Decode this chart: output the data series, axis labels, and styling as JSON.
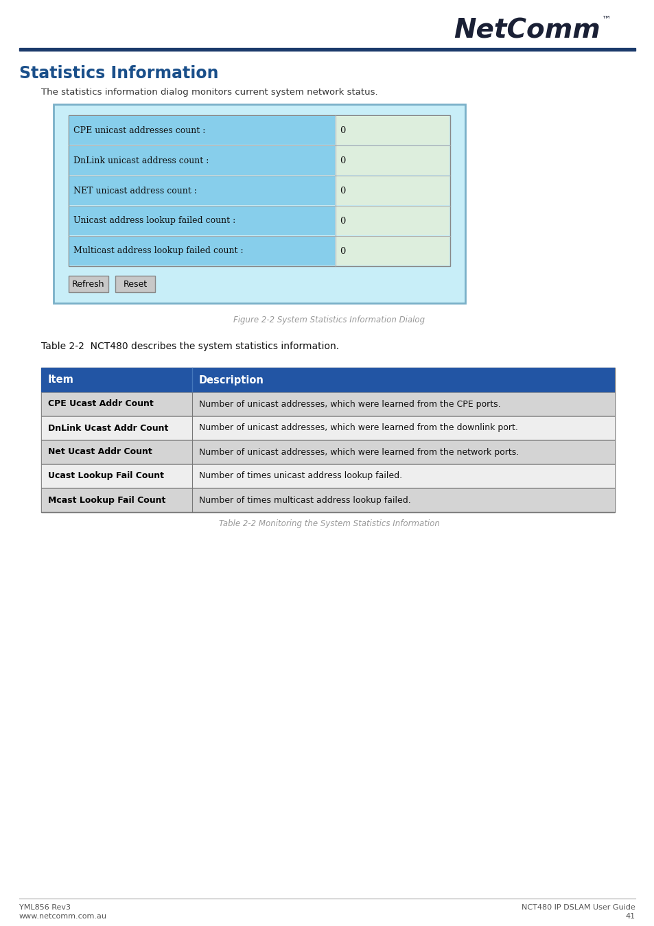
{
  "page_bg": "#ffffff",
  "header_line_color": "#1b3a6b",
  "title_text": "Statistics Information",
  "title_color": "#1a4f8a",
  "subtitle_text": "The statistics information dialog monitors current system network status.",
  "subtitle_color": "#333333",
  "dialog_outer_bg": "#c8eef8",
  "dialog_outer_border": "#7ab0c8",
  "dialog_inner_bg": "#c8eef8",
  "dialog_inner_border": "#888888",
  "dialog_field_bg": "#87ceeb",
  "dialog_value_bg": "#ddeedd",
  "dialog_rows": [
    {
      "label": "CPE unicast addresses count :",
      "value": "0"
    },
    {
      "label": "DnLink unicast address count :",
      "value": "0"
    },
    {
      "label": "NET unicast address count :",
      "value": "0"
    },
    {
      "label": "Unicast address lookup failed count :",
      "value": "0"
    },
    {
      "label": "Multicast address lookup failed count :",
      "value": "0"
    }
  ],
  "dialog_buttons": [
    "Refresh",
    "Reset"
  ],
  "fig_caption": "Figure 2-2 System Statistics Information Dialog",
  "table_caption": "Table 2-2  NCT480 describes the system statistics information.",
  "table_header_bg": "#2255a4",
  "table_header_text": "#ffffff",
  "table_row_bg_odd": "#d4d4d4",
  "table_row_bg_even": "#eeeeee",
  "table_border": "#777777",
  "table_col1_header": "Item",
  "table_col2_header": "Description",
  "table_rows": [
    {
      "item": "CPE Ucast Addr Count",
      "desc": "Number of unicast addresses, which were learned from the CPE ports."
    },
    {
      "item": "DnLink Ucast Addr Count",
      "desc": "Number of unicast addresses, which were learned from the downlink port."
    },
    {
      "item": "Net Ucast Addr Count",
      "desc": "Number of unicast addresses, which were learned from the network ports."
    },
    {
      "item": "Ucast Lookup Fail Count",
      "desc": "Number of times unicast address lookup failed."
    },
    {
      "item": "Mcast Lookup Fail Count",
      "desc": "Number of times multicast address lookup failed."
    }
  ],
  "table_note": "Table 2-2 Monitoring the System Statistics Information",
  "footer_left1": "YML856 Rev3",
  "footer_left2": "www.netcomm.com.au",
  "footer_right1": "NCT480 IP DSLAM User Guide",
  "footer_right2": "41",
  "footer_color": "#555555",
  "logo_text": "NetComm",
  "logo_tm": "™",
  "logo_color": "#1a2035"
}
